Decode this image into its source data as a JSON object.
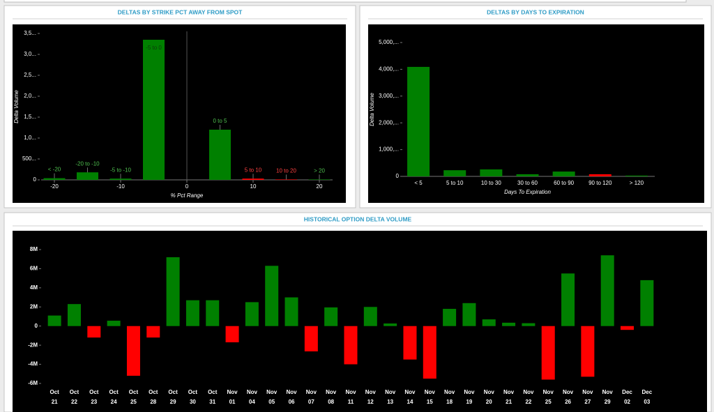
{
  "chart_data": [
    {
      "type": "bar",
      "title": "DELTAS BY STRIKE PCT AWAY FROM SPOT",
      "x_label": "% Pct Range",
      "y_label": "Delta Volume",
      "x": [
        -20,
        -15,
        -10,
        -5,
        5,
        10,
        15,
        20
      ],
      "bar_labels": [
        "< -20",
        "-20 to -10",
        "-5 to -10",
        "-5 to 0",
        "0 to 5",
        "5 to 10",
        "10 to 20",
        "> 20"
      ],
      "values": [
        40000,
        180000,
        30000,
        3350000,
        1200000,
        30000,
        10000,
        10000
      ],
      "colors": [
        "#008000",
        "#008000",
        "#008000",
        "#008000",
        "#008000",
        "#ff0000",
        "#ff0000",
        "#008000"
      ],
      "xlim": [
        -22,
        22
      ],
      "xticks": [
        -20,
        -10,
        0,
        10,
        20
      ],
      "ylim": [
        0,
        3500000
      ],
      "yticks": [
        0,
        {
          "value": 500000,
          "label": "500..."
        },
        {
          "value": 1000000,
          "label": "1,0..."
        },
        {
          "value": 1500000,
          "label": "1,5..."
        },
        {
          "value": 2000000,
          "label": "2,0..."
        },
        {
          "value": 2500000,
          "label": "2,5..."
        },
        {
          "value": 3000000,
          "label": "3,0..."
        },
        {
          "value": 3500000,
          "label": "3,5..."
        }
      ]
    },
    {
      "type": "bar",
      "title": "DELTAS BY DAYS TO EXPIRATION",
      "x_label": "Days To Expiration",
      "y_label": "Delta Volume",
      "categories": [
        "< 5",
        "5 to 10",
        "10 to 30",
        "30 to 60",
        "60 to 90",
        "90 to 120",
        "> 120"
      ],
      "values": [
        4090000,
        230000,
        260000,
        80000,
        180000,
        80000,
        30000
      ],
      "colors": [
        "#008000",
        "#008000",
        "#008000",
        "#008000",
        "#008000",
        "#ff0000",
        "#008000"
      ],
      "ylim": [
        0,
        5000000
      ],
      "yticks": [
        0,
        {
          "value": 1000000,
          "label": "1,000,..."
        },
        {
          "value": 2000000,
          "label": "2,000,..."
        },
        {
          "value": 3000000,
          "label": "3,000,..."
        },
        {
          "value": 4000000,
          "label": "4,000,..."
        },
        {
          "value": 5000000,
          "label": "5,000,..."
        }
      ]
    },
    {
      "type": "bar",
      "title": "HISTORICAL OPTION DELTA VOLUME",
      "categories": [
        [
          "Oct",
          "21"
        ],
        [
          "Oct",
          "22"
        ],
        [
          "Oct",
          "23"
        ],
        [
          "Oct",
          "24"
        ],
        [
          "Oct",
          "25"
        ],
        [
          "Oct",
          "28"
        ],
        [
          "Oct",
          "29"
        ],
        [
          "Oct",
          "30"
        ],
        [
          "Oct",
          "31"
        ],
        [
          "Nov",
          "01"
        ],
        [
          "Nov",
          "04"
        ],
        [
          "Nov",
          "05"
        ],
        [
          "Nov",
          "06"
        ],
        [
          "Nov",
          "07"
        ],
        [
          "Nov",
          "08"
        ],
        [
          "Nov",
          "11"
        ],
        [
          "Nov",
          "12"
        ],
        [
          "Nov",
          "13"
        ],
        [
          "Nov",
          "14"
        ],
        [
          "Nov",
          "15"
        ],
        [
          "Nov",
          "18"
        ],
        [
          "Nov",
          "19"
        ],
        [
          "Nov",
          "20"
        ],
        [
          "Nov",
          "21"
        ],
        [
          "Nov",
          "22"
        ],
        [
          "Nov",
          "25"
        ],
        [
          "Nov",
          "26"
        ],
        [
          "Nov",
          "27"
        ],
        [
          "Nov",
          "29"
        ],
        [
          "Dec",
          "02"
        ],
        [
          "Dec",
          "03"
        ]
      ],
      "values": [
        1100000,
        2300000,
        -1200000,
        560000,
        -5200000,
        -1200000,
        7200000,
        2700000,
        2700000,
        -1700000,
        2500000,
        6300000,
        3000000,
        -2650000,
        1950000,
        -4000000,
        2000000,
        270000,
        -3500000,
        -5500000,
        1800000,
        2400000,
        700000,
        350000,
        300000,
        -5600000,
        5500000,
        -5300000,
        7400000,
        -400000,
        4800000
      ],
      "positive_color": "#008000",
      "negative_color": "#ff0000",
      "ylim": [
        -6000000,
        8000000
      ],
      "yticks": [
        {
          "value": -6000000,
          "label": "-6M"
        },
        {
          "value": -4000000,
          "label": "-4M"
        },
        {
          "value": -2000000,
          "label": "-2M"
        },
        0,
        {
          "value": 2000000,
          "label": "2M"
        },
        {
          "value": 4000000,
          "label": "4M"
        },
        {
          "value": 6000000,
          "label": "6M"
        },
        {
          "value": 8000000,
          "label": "8M"
        }
      ]
    }
  ]
}
